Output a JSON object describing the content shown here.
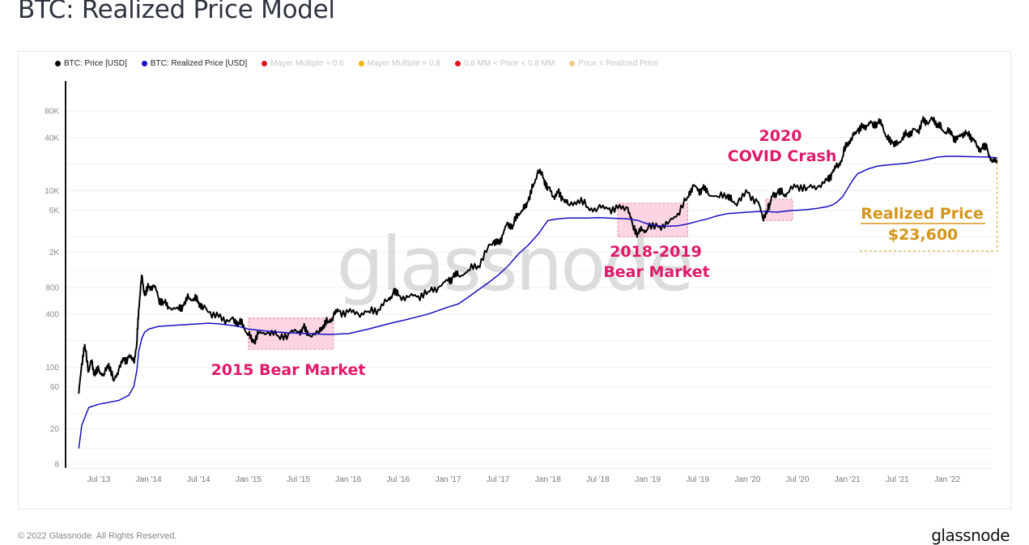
{
  "page": {
    "title": "BTC: Realized Price Model",
    "footer_copyright": "© 2022 Glassnode. All Rights Reserved.",
    "footer_brand": "glassnode",
    "watermark": "glassnode"
  },
  "legend": [
    {
      "label": "BTC: Price [USD]",
      "color": "#000000",
      "active": true
    },
    {
      "label": "BTC: Realized Price [USD]",
      "color": "#1a0fc0",
      "active": true
    },
    {
      "label": "Mayer Multiple = 0.6",
      "color": "#e0151f",
      "active": false
    },
    {
      "label": "Mayer Multiple = 0.8",
      "color": "#f0b400",
      "active": false
    },
    {
      "label": "0.6 MM < Price < 0.8 MM",
      "color": "#e0151f",
      "active": false
    },
    {
      "label": "Price < Realized Price",
      "color": "#f5c98a",
      "active": false
    }
  ],
  "chart_data": {
    "type": "line",
    "title": "BTC: Realized Price Model",
    "xlabel": "",
    "ylabel": "",
    "yscale": "log",
    "ylim": [
      7,
      120000
    ],
    "xlim": [
      2013.25,
      2022.6
    ],
    "grid": true,
    "legend_position": "top-left",
    "y_ticks": [
      {
        "label": "80K",
        "value": 80000
      },
      {
        "label": "40K",
        "value": 40000
      },
      {
        "label": "10K",
        "value": 10000
      },
      {
        "label": "6K",
        "value": 6000
      },
      {
        "label": "2K",
        "value": 2000
      },
      {
        "label": "800",
        "value": 800
      },
      {
        "label": "400",
        "value": 400
      },
      {
        "label": "100",
        "value": 100
      },
      {
        "label": "60",
        "value": 60
      },
      {
        "label": "20",
        "value": 20
      },
      {
        "label": "8",
        "value": 8
      }
    ],
    "x_ticks": [
      {
        "label": "Jul '13",
        "value": 2013.5
      },
      {
        "label": "Jan '14",
        "value": 2014.0
      },
      {
        "label": "Jul '14",
        "value": 2014.5
      },
      {
        "label": "Jan '15",
        "value": 2015.0
      },
      {
        "label": "Jul '15",
        "value": 2015.5
      },
      {
        "label": "Jan '16",
        "value": 2016.0
      },
      {
        "label": "Jul '16",
        "value": 2016.5
      },
      {
        "label": "Jan '17",
        "value": 2017.0
      },
      {
        "label": "Jul '17",
        "value": 2017.5
      },
      {
        "label": "Jan '18",
        "value": 2018.0
      },
      {
        "label": "Jul '18",
        "value": 2018.5
      },
      {
        "label": "Jan '19",
        "value": 2019.0
      },
      {
        "label": "Jul '19",
        "value": 2019.5
      },
      {
        "label": "Jan '20",
        "value": 2020.0
      },
      {
        "label": "Jul '20",
        "value": 2020.5
      },
      {
        "label": "Jan '21",
        "value": 2021.0
      },
      {
        "label": "Jul '21",
        "value": 2021.5
      },
      {
        "label": "Jan '22",
        "value": 2022.0
      }
    ],
    "series": [
      {
        "name": "BTC: Price [USD]",
        "color": "#000000",
        "x": [
          2013.3,
          2013.33,
          2013.36,
          2013.4,
          2013.43,
          2013.46,
          2013.5,
          2013.55,
          2013.6,
          2013.65,
          2013.7,
          2013.75,
          2013.8,
          2013.85,
          2013.88,
          2013.9,
          2013.93,
          2013.96,
          2014.0,
          2014.05,
          2014.1,
          2014.15,
          2014.2,
          2014.3,
          2014.35,
          2014.4,
          2014.45,
          2014.5,
          2014.55,
          2014.6,
          2014.7,
          2014.8,
          2014.85,
          2014.9,
          2014.95,
          2015.0,
          2015.05,
          2015.1,
          2015.2,
          2015.3,
          2015.4,
          2015.5,
          2015.55,
          2015.6,
          2015.7,
          2015.75,
          2015.8,
          2015.85,
          2015.9,
          2016.0,
          2016.1,
          2016.2,
          2016.3,
          2016.4,
          2016.45,
          2016.5,
          2016.6,
          2016.7,
          2016.8,
          2016.9,
          2017.0,
          2017.05,
          2017.1,
          2017.2,
          2017.3,
          2017.4,
          2017.45,
          2017.5,
          2017.55,
          2017.6,
          2017.65,
          2017.7,
          2017.75,
          2017.8,
          2017.85,
          2017.9,
          2017.96,
          2018.0,
          2018.05,
          2018.1,
          2018.15,
          2018.2,
          2018.3,
          2018.4,
          2018.5,
          2018.6,
          2018.7,
          2018.8,
          2018.85,
          2018.9,
          2018.95,
          2019.0,
          2019.1,
          2019.2,
          2019.3,
          2019.4,
          2019.45,
          2019.5,
          2019.55,
          2019.6,
          2019.7,
          2019.8,
          2019.85,
          2019.9,
          2020.0,
          2020.1,
          2020.15,
          2020.2,
          2020.22,
          2020.25,
          2020.3,
          2020.35,
          2020.4,
          2020.5,
          2020.6,
          2020.7,
          2020.8,
          2020.85,
          2020.9,
          2020.95,
          2021.0,
          2021.05,
          2021.1,
          2021.15,
          2021.2,
          2021.25,
          2021.3,
          2021.35,
          2021.4,
          2021.45,
          2021.5,
          2021.55,
          2021.6,
          2021.65,
          2021.7,
          2021.75,
          2021.8,
          2021.85,
          2021.9,
          2021.95,
          2022.0,
          2022.05,
          2022.1,
          2022.15,
          2022.2,
          2022.25,
          2022.3,
          2022.35,
          2022.4,
          2022.45,
          2022.5
        ],
        "y": [
          50,
          110,
          180,
          90,
          120,
          80,
          95,
          80,
          110,
          70,
          95,
          120,
          130,
          115,
          180,
          450,
          1100,
          650,
          800,
          850,
          600,
          550,
          480,
          450,
          500,
          620,
          600,
          550,
          480,
          420,
          370,
          330,
          350,
          320,
          300,
          230,
          190,
          240,
          250,
          225,
          240,
          250,
          280,
          230,
          245,
          300,
          330,
          380,
          430,
          420,
          400,
          430,
          450,
          580,
          700,
          650,
          620,
          640,
          720,
          800,
          950,
          1050,
          1100,
          1250,
          1400,
          2300,
          2600,
          2500,
          3200,
          4300,
          4000,
          5500,
          6000,
          7500,
          11000,
          17000,
          13500,
          11000,
          8500,
          9500,
          8000,
          7000,
          7800,
          6500,
          6300,
          6200,
          6300,
          6400,
          4000,
          3300,
          3600,
          3700,
          3900,
          4200,
          5500,
          8500,
          11500,
          10000,
          10500,
          9500,
          8500,
          9000,
          7500,
          7200,
          9500,
          7500,
          5000,
          6000,
          7000,
          8800,
          9500,
          9200,
          9400,
          11500,
          10800,
          11000,
          13000,
          16000,
          19000,
          24000,
          35000,
          40000,
          48000,
          52000,
          55000,
          58000,
          59000,
          56000,
          38000,
          35000,
          33000,
          40000,
          44000,
          48000,
          46000,
          61000,
          58000,
          66000,
          57000,
          49000,
          47000,
          42000,
          38000,
          44000,
          45000,
          40000,
          31000,
          30000,
          30000,
          21000,
          22000
        ]
      },
      {
        "name": "BTC: Realized Price [USD]",
        "color": "#1a0fc0",
        "x": [
          2013.3,
          2013.33,
          2013.4,
          2013.5,
          2013.6,
          2013.7,
          2013.8,
          2013.85,
          2013.88,
          2013.9,
          2013.93,
          2013.96,
          2014.0,
          2014.1,
          2014.2,
          2014.3,
          2014.4,
          2014.5,
          2014.6,
          2014.7,
          2014.8,
          2014.9,
          2015.0,
          2015.2,
          2015.4,
          2015.6,
          2015.8,
          2016.0,
          2016.2,
          2016.4,
          2016.6,
          2016.8,
          2017.0,
          2017.1,
          2017.2,
          2017.3,
          2017.4,
          2017.5,
          2017.6,
          2017.7,
          2017.8,
          2017.9,
          2017.96,
          2018.0,
          2018.1,
          2018.2,
          2018.3,
          2018.4,
          2018.5,
          2018.6,
          2018.7,
          2018.8,
          2018.9,
          2019.0,
          2019.1,
          2019.2,
          2019.3,
          2019.4,
          2019.5,
          2019.6,
          2019.7,
          2019.8,
          2019.9,
          2020.0,
          2020.1,
          2020.2,
          2020.3,
          2020.4,
          2020.5,
          2020.6,
          2020.7,
          2020.8,
          2020.85,
          2020.9,
          2020.95,
          2021.0,
          2021.05,
          2021.1,
          2021.2,
          2021.3,
          2021.4,
          2021.5,
          2021.6,
          2021.7,
          2021.8,
          2021.9,
          2022.0,
          2022.1,
          2022.2,
          2022.3,
          2022.4,
          2022.5
        ],
        "y": [
          12,
          22,
          35,
          38,
          40,
          42,
          48,
          60,
          90,
          150,
          210,
          250,
          270,
          290,
          295,
          300,
          305,
          310,
          315,
          310,
          300,
          290,
          270,
          255,
          245,
          240,
          235,
          240,
          270,
          310,
          350,
          400,
          480,
          520,
          620,
          750,
          900,
          1100,
          1400,
          1900,
          2400,
          3200,
          4000,
          4600,
          4800,
          4900,
          4900,
          4900,
          4950,
          4900,
          4850,
          4800,
          4600,
          4200,
          4000,
          3950,
          4000,
          4200,
          4500,
          4800,
          5200,
          5500,
          5600,
          5700,
          5800,
          5800,
          5700,
          5900,
          6000,
          6100,
          6300,
          6600,
          6900,
          7500,
          8500,
          10500,
          13000,
          15500,
          17500,
          19000,
          19500,
          20000,
          20500,
          21500,
          22500,
          24000,
          24500,
          24500,
          24300,
          24200,
          24000,
          23600
        ]
      }
    ],
    "annotations": [
      {
        "text": "2015 Bear Market",
        "x_start": 2015.0,
        "x_end": 2015.85,
        "y_low": 160,
        "y_high": 360,
        "color": "#e0196b"
      },
      {
        "text": "2018-2019 Bear Market",
        "x_start": 2018.7,
        "x_end": 2019.4,
        "y_low": 3000,
        "y_high": 7200,
        "color": "#e0196b"
      },
      {
        "text": "2020 COVID Crash",
        "x_start": 2020.18,
        "x_end": 2020.45,
        "y_low": 4600,
        "y_high": 8000,
        "color": "#e0196b"
      },
      {
        "title": "Realized Price",
        "value_label": "$23,600",
        "value": 23600,
        "color": "#d4951a"
      }
    ]
  }
}
